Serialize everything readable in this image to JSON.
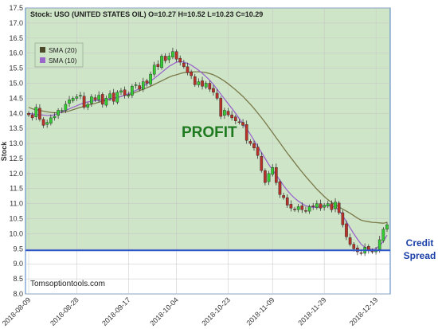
{
  "chart_data": {
    "type": "candlestick",
    "header": "Stock: USO (UNITED STATES OIL) O=10.27 H=10.52 L=10.23 C=10.29",
    "ylabel": "Stock",
    "xlabel": "",
    "ylim": [
      8.0,
      17.5
    ],
    "y_ticks": [
      8.0,
      8.5,
      9.0,
      9.5,
      10.0,
      10.5,
      11.0,
      11.5,
      12.0,
      12.5,
      13.0,
      13.5,
      14.0,
      14.5,
      15.0,
      15.5,
      16.0,
      16.5,
      17.0,
      17.5
    ],
    "y_tick_labels": [
      "8.0",
      "8.5",
      "9.0",
      "9.5",
      "10.0",
      "10.5",
      "11.0",
      "11.5",
      "12.0",
      "12.5",
      "13.0",
      "13.5",
      "14.0",
      "14.5",
      "15.0",
      "15.5",
      "16.0",
      "16.5",
      "17.0",
      "17.5"
    ],
    "x_tick_labels": [
      "2018-08-09",
      "2018-08-28",
      "2018-09-17",
      "2018-10-04",
      "2018-10-23",
      "2018-11-09",
      "2018-11-29",
      "2018-12-19"
    ],
    "x_tick_index": [
      0,
      13,
      27,
      40,
      54,
      66,
      80,
      94
    ],
    "grid": true,
    "legend_position": "top-left",
    "legend": [
      {
        "name": "SMA  (20)",
        "color": "#7a7a4a"
      },
      {
        "name": "SMA  (10)",
        "color": "#9a66cc"
      }
    ],
    "annotations": {
      "profit": "PROFIT",
      "watermark": "Tomsoptiontools.com",
      "credit_spread": "Credit\nSpread"
    },
    "credit_spread_level": 9.45,
    "closes": [
      13.95,
      13.85,
      14.2,
      13.8,
      13.6,
      13.7,
      13.85,
      13.9,
      14.1,
      14.1,
      14.3,
      14.45,
      14.5,
      14.55,
      14.6,
      14.2,
      14.3,
      14.55,
      14.45,
      14.6,
      14.3,
      14.5,
      14.65,
      14.4,
      14.7,
      14.75,
      14.6,
      14.6,
      14.9,
      14.95,
      14.8,
      15.05,
      15.0,
      15.3,
      15.6,
      15.55,
      15.9,
      15.75,
      15.9,
      16.05,
      15.8,
      15.7,
      15.55,
      15.35,
      15.25,
      14.95,
      15.05,
      14.9,
      15.0,
      14.8,
      14.7,
      14.5,
      13.9,
      14.1,
      13.95,
      13.85,
      13.75,
      13.7,
      13.6,
      13.1,
      13.0,
      12.85,
      12.6,
      12.1,
      11.7,
      12.0,
      12.2,
      11.7,
      11.3,
      11.2,
      10.95,
      10.85,
      10.8,
      10.9,
      10.8,
      10.75,
      10.9,
      10.9,
      11.0,
      10.85,
      10.95,
      11.0,
      10.8,
      11.05,
      10.7,
      10.3,
      9.9,
      9.65,
      9.5,
      9.4,
      9.35,
      9.55,
      9.45,
      9.4,
      9.45,
      9.8,
      10.15,
      10.3
    ],
    "series": [
      {
        "name": "SMA  (20)",
        "color": "#7a7a4a",
        "values": [
          14.2,
          14.15,
          14.12,
          14.1,
          14.07,
          14.05,
          14.03,
          14.02,
          14.02,
          14.03,
          14.05,
          14.08,
          14.12,
          14.16,
          14.2,
          14.23,
          14.27,
          14.3,
          14.33,
          14.37,
          14.4,
          14.43,
          14.46,
          14.5,
          14.53,
          14.56,
          14.6,
          14.62,
          14.65,
          14.7,
          14.75,
          14.8,
          14.85,
          14.9,
          14.96,
          15.02,
          15.08,
          15.14,
          15.2,
          15.25,
          15.28,
          15.32,
          15.35,
          15.36,
          15.37,
          15.38,
          15.38,
          15.37,
          15.35,
          15.32,
          15.28,
          15.22,
          15.15,
          15.07,
          14.98,
          14.88,
          14.78,
          14.67,
          14.56,
          14.43,
          14.3,
          14.16,
          14.01,
          13.86,
          13.7,
          13.53,
          13.36,
          13.19,
          13.02,
          12.85,
          12.68,
          12.52,
          12.36,
          12.2,
          12.05,
          11.9,
          11.76,
          11.62,
          11.48,
          11.36,
          11.24,
          11.13,
          11.04,
          10.96,
          10.89,
          10.82,
          10.75,
          10.68,
          10.6,
          10.52,
          10.45,
          10.42,
          10.4,
          10.38,
          10.37,
          10.36,
          10.35,
          10.38
        ]
      },
      {
        "name": "SMA  (10)",
        "color": "#9a66cc",
        "values": [
          14.0,
          13.98,
          13.96,
          13.95,
          13.94,
          13.93,
          13.93,
          13.95,
          14.0,
          14.05,
          14.1,
          14.15,
          14.2,
          14.25,
          14.3,
          14.35,
          14.38,
          14.4,
          14.42,
          14.43,
          14.44,
          14.45,
          14.47,
          14.5,
          14.53,
          14.56,
          14.6,
          14.65,
          14.7,
          14.76,
          14.82,
          14.9,
          14.98,
          15.07,
          15.16,
          15.26,
          15.36,
          15.46,
          15.56,
          15.63,
          15.7,
          15.72,
          15.7,
          15.66,
          15.6,
          15.52,
          15.43,
          15.33,
          15.22,
          15.1,
          14.96,
          14.8,
          14.64,
          14.48,
          14.32,
          14.16,
          14.0,
          13.83,
          13.66,
          13.49,
          13.3,
          13.1,
          12.9,
          12.7,
          12.5,
          12.3,
          12.12,
          11.95,
          11.78,
          11.6,
          11.44,
          11.3,
          11.18,
          11.08,
          11.0,
          10.93,
          10.9,
          10.88,
          10.88,
          10.9,
          10.92,
          10.93,
          10.92,
          10.88,
          10.78,
          10.6,
          10.4,
          10.2,
          10.0,
          9.82,
          9.65,
          9.55,
          9.5,
          9.48,
          9.5,
          9.6,
          9.75,
          9.95
        ]
      }
    ]
  }
}
